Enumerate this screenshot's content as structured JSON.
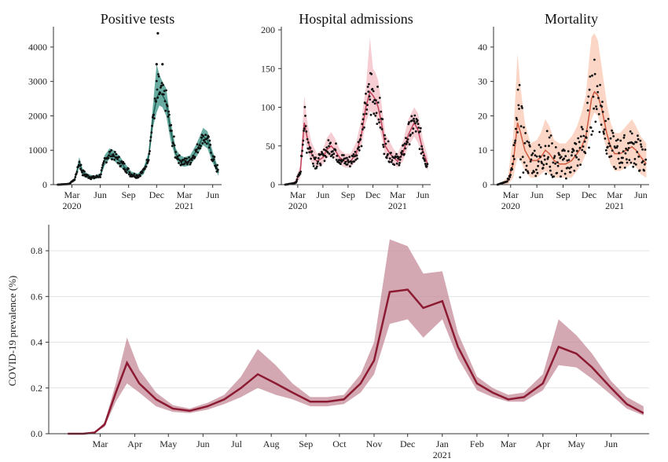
{
  "chart_data": [
    {
      "type": "scatter",
      "title": "Positive tests",
      "xlabel": "",
      "ylabel": "",
      "x_range": [
        "2020-01-01",
        "2021-06-30"
      ],
      "ylim": [
        0,
        4500
      ],
      "yticks": [
        "0",
        "1000",
        "2000",
        "3000",
        "4000"
      ],
      "xticks": [
        [
          "Mar",
          "2020"
        ],
        [
          "Jun",
          ""
        ],
        [
          "Sep",
          ""
        ],
        [
          "Dec",
          ""
        ],
        [
          "Mar",
          "2021"
        ],
        [
          "Jun",
          ""
        ]
      ],
      "band_color": "#2a8a7a",
      "line_color": "#1f5f55",
      "point_color": "#111111",
      "series": [
        {
          "x": [
            "2020-01-15",
            "2020-02-20",
            "2020-03-10",
            "2020-03-25",
            "2020-04-05",
            "2020-04-20",
            "2020-05-10",
            "2020-06-01",
            "2020-06-15",
            "2020-07-01",
            "2020-07-15",
            "2020-08-01",
            "2020-08-20",
            "2020-09-10",
            "2020-10-01",
            "2020-10-20",
            "2020-11-05",
            "2020-11-20",
            "2020-12-01",
            "2020-12-10",
            "2020-12-20",
            "2021-01-01",
            "2021-01-15",
            "2021-02-01",
            "2021-02-15",
            "2021-03-01",
            "2021-03-20",
            "2021-04-10",
            "2021-05-01",
            "2021-05-15",
            "2021-06-01",
            "2021-06-20"
          ],
          "y": [
            0,
            20,
            150,
            650,
            350,
            250,
            200,
            260,
            700,
            900,
            850,
            700,
            500,
            300,
            250,
            400,
            800,
            2000,
            2500,
            2700,
            2600,
            2400,
            1600,
            900,
            700,
            650,
            700,
            1000,
            1400,
            1300,
            800,
            350
          ],
          "lower": [
            0,
            10,
            100,
            500,
            250,
            180,
            150,
            200,
            550,
            750,
            700,
            550,
            380,
            230,
            180,
            300,
            650,
            1700,
            2100,
            2300,
            2250,
            2000,
            1300,
            750,
            550,
            520,
            560,
            820,
            1150,
            1050,
            630,
            250
          ],
          "upper": [
            0,
            30,
            200,
            800,
            450,
            320,
            260,
            330,
            850,
            1050,
            1000,
            850,
            620,
            380,
            320,
            500,
            950,
            2400,
            3500,
            3200,
            3000,
            2800,
            1900,
            1050,
            850,
            800,
            850,
            1200,
            1650,
            1550,
            970,
            450
          ]
        }
      ],
      "outliers": [
        {
          "x": "2020-12-05",
          "y": 4400
        },
        {
          "x": "2020-12-01",
          "y": 3500
        },
        {
          "x": "2020-12-20",
          "y": 3500
        }
      ]
    },
    {
      "type": "scatter",
      "title": "Hospital admissions",
      "xlabel": "",
      "ylabel": "",
      "x_range": [
        "2020-01-01",
        "2021-06-30"
      ],
      "ylim": [
        0,
        200
      ],
      "yticks": [
        "0",
        "50",
        "100",
        "150",
        "200"
      ],
      "xticks": [
        [
          "Mar",
          "2020"
        ],
        [
          "Jun",
          ""
        ],
        [
          "Sep",
          ""
        ],
        [
          "Dec",
          ""
        ],
        [
          "Mar",
          "2021"
        ],
        [
          "Jun",
          ""
        ]
      ],
      "band_color": "#f2b8c0",
      "line_color": "#c0405a",
      "point_color": "#111111",
      "series": [
        {
          "x": [
            "2020-01-15",
            "2020-02-20",
            "2020-03-10",
            "2020-03-25",
            "2020-04-05",
            "2020-04-20",
            "2020-05-10",
            "2020-06-01",
            "2020-06-15",
            "2020-07-01",
            "2020-07-15",
            "2020-08-01",
            "2020-08-20",
            "2020-09-10",
            "2020-10-01",
            "2020-10-20",
            "2020-11-05",
            "2020-11-20",
            "2020-12-01",
            "2020-12-10",
            "2020-12-20",
            "2021-01-01",
            "2021-01-15",
            "2021-02-01",
            "2021-02-15",
            "2021-03-01",
            "2021-03-20",
            "2021-04-10",
            "2021-05-01",
            "2021-05-15",
            "2021-06-01",
            "2021-06-20"
          ],
          "y": [
            0,
            2,
            15,
            80,
            60,
            40,
            30,
            35,
            45,
            50,
            45,
            35,
            30,
            30,
            40,
            65,
            100,
            120,
            115,
            110,
            100,
            80,
            50,
            40,
            35,
            30,
            40,
            65,
            80,
            70,
            45,
            25
          ],
          "lower": [
            0,
            0,
            8,
            60,
            45,
            28,
            22,
            26,
            34,
            38,
            34,
            26,
            22,
            22,
            30,
            50,
            80,
            95,
            92,
            88,
            80,
            62,
            38,
            30,
            26,
            22,
            30,
            50,
            62,
            54,
            33,
            17
          ],
          "upper": [
            0,
            5,
            25,
            115,
            80,
            55,
            40,
            46,
            60,
            68,
            60,
            46,
            40,
            40,
            55,
            85,
            125,
            190,
            150,
            145,
            135,
            105,
            66,
            55,
            46,
            40,
            55,
            85,
            100,
            92,
            60,
            35
          ]
        }
      ],
      "outliers": []
    },
    {
      "type": "scatter",
      "title": "Mortality",
      "xlabel": "",
      "ylabel": "",
      "x_range": [
        "2020-01-01",
        "2021-06-30"
      ],
      "ylim": [
        0,
        45
      ],
      "yticks": [
        "0",
        "10",
        "20",
        "30",
        "40"
      ],
      "xticks": [
        [
          "Mar",
          "2020"
        ],
        [
          "Jun",
          ""
        ],
        [
          "Sep",
          ""
        ],
        [
          "Dec",
          ""
        ],
        [
          "Mar",
          "2021"
        ],
        [
          "Jun",
          ""
        ]
      ],
      "band_color": "#f9c4ae",
      "line_color": "#d05a40",
      "point_color": "#111111",
      "series": [
        {
          "x": [
            "2020-01-15",
            "2020-02-20",
            "2020-03-10",
            "2020-03-25",
            "2020-04-05",
            "2020-04-20",
            "2020-05-10",
            "2020-06-01",
            "2020-06-15",
            "2020-07-01",
            "2020-07-15",
            "2020-08-01",
            "2020-08-20",
            "2020-09-10",
            "2020-10-01",
            "2020-10-20",
            "2020-11-05",
            "2020-11-20",
            "2020-12-01",
            "2020-12-10",
            "2020-12-20",
            "2021-01-01",
            "2021-01-15",
            "2021-02-01",
            "2021-02-15",
            "2021-03-01",
            "2021-03-20",
            "2021-04-10",
            "2021-05-01",
            "2021-05-15",
            "2021-06-01",
            "2021-06-20"
          ],
          "y": [
            0,
            1,
            6,
            18,
            15,
            10,
            7,
            7,
            8,
            10,
            9,
            7,
            6,
            6,
            7,
            9,
            11,
            14,
            20,
            25,
            27,
            26,
            22,
            15,
            11,
            9,
            9,
            10,
            11,
            10,
            8,
            6
          ],
          "lower": [
            0,
            0,
            2,
            8,
            7,
            4,
            2,
            2,
            3,
            4,
            3,
            2,
            2,
            2,
            2,
            4,
            6,
            9,
            14,
            19,
            21,
            20,
            16,
            10,
            6,
            4,
            4,
            5,
            6,
            5,
            3,
            2
          ],
          "upper": [
            0,
            2,
            14,
            38,
            28,
            18,
            12,
            13,
            15,
            19,
            17,
            13,
            12,
            12,
            14,
            17,
            21,
            26,
            36,
            43,
            44,
            42,
            34,
            24,
            18,
            15,
            15,
            17,
            19,
            17,
            14,
            12
          ]
        }
      ],
      "outliers": []
    },
    {
      "type": "area",
      "title": "",
      "xlabel": "",
      "ylabel": "COVID-19 prevalence (%)",
      "x_range": [
        "2020-01-15",
        "2021-07-05"
      ],
      "ylim": [
        0,
        0.9
      ],
      "yticks": [
        "0.0",
        "0.2",
        "0.4",
        "0.6",
        "0.8"
      ],
      "xticks": [
        [
          "Mar",
          ""
        ],
        [
          "Apr",
          ""
        ],
        [
          "May",
          ""
        ],
        [
          "Jun",
          ""
        ],
        [
          "Jul",
          ""
        ],
        [
          "Aug",
          ""
        ],
        [
          "Sep",
          ""
        ],
        [
          "Oct",
          ""
        ],
        [
          "Nov",
          ""
        ],
        [
          "Dec",
          ""
        ],
        [
          "Jan",
          "2021"
        ],
        [
          "Feb",
          ""
        ],
        [
          "Mar",
          ""
        ],
        [
          "Apr",
          ""
        ],
        [
          "May",
          ""
        ],
        [
          "Jun",
          ""
        ]
      ],
      "grid": true,
      "band_color": "#c48b98",
      "line_color": "#8c1a32",
      "series": [
        {
          "x": [
            "2020-02-01",
            "2020-02-15",
            "2020-02-25",
            "2020-03-05",
            "2020-03-15",
            "2020-03-25",
            "2020-04-05",
            "2020-04-20",
            "2020-05-05",
            "2020-05-20",
            "2020-06-05",
            "2020-06-20",
            "2020-07-05",
            "2020-07-20",
            "2020-08-05",
            "2020-08-20",
            "2020-09-05",
            "2020-09-20",
            "2020-10-05",
            "2020-10-20",
            "2020-11-01",
            "2020-11-15",
            "2020-12-01",
            "2020-12-15",
            "2021-01-01",
            "2021-01-15",
            "2021-02-01",
            "2021-02-15",
            "2021-03-01",
            "2021-03-15",
            "2021-04-01",
            "2021-04-15",
            "2021-05-01",
            "2021-05-15",
            "2021-06-01",
            "2021-06-15",
            "2021-06-30"
          ],
          "y": [
            0.0,
            0.0,
            0.005,
            0.04,
            0.18,
            0.31,
            0.22,
            0.15,
            0.11,
            0.1,
            0.12,
            0.15,
            0.2,
            0.26,
            0.22,
            0.18,
            0.14,
            0.14,
            0.15,
            0.22,
            0.32,
            0.62,
            0.63,
            0.55,
            0.58,
            0.38,
            0.22,
            0.18,
            0.15,
            0.16,
            0.22,
            0.38,
            0.35,
            0.29,
            0.2,
            0.13,
            0.09
          ],
          "lower": [
            0.0,
            0.0,
            0.004,
            0.03,
            0.14,
            0.22,
            0.18,
            0.12,
            0.095,
            0.09,
            0.105,
            0.13,
            0.16,
            0.2,
            0.17,
            0.15,
            0.12,
            0.12,
            0.13,
            0.18,
            0.26,
            0.48,
            0.5,
            0.42,
            0.5,
            0.33,
            0.19,
            0.16,
            0.14,
            0.14,
            0.19,
            0.3,
            0.29,
            0.24,
            0.17,
            0.11,
            0.08
          ],
          "upper": [
            0.0,
            0.0,
            0.006,
            0.05,
            0.22,
            0.42,
            0.28,
            0.18,
            0.125,
            0.11,
            0.135,
            0.17,
            0.25,
            0.37,
            0.3,
            0.22,
            0.16,
            0.16,
            0.17,
            0.26,
            0.4,
            0.85,
            0.82,
            0.7,
            0.71,
            0.44,
            0.25,
            0.2,
            0.17,
            0.18,
            0.26,
            0.5,
            0.43,
            0.35,
            0.23,
            0.16,
            0.12
          ]
        }
      ]
    }
  ]
}
